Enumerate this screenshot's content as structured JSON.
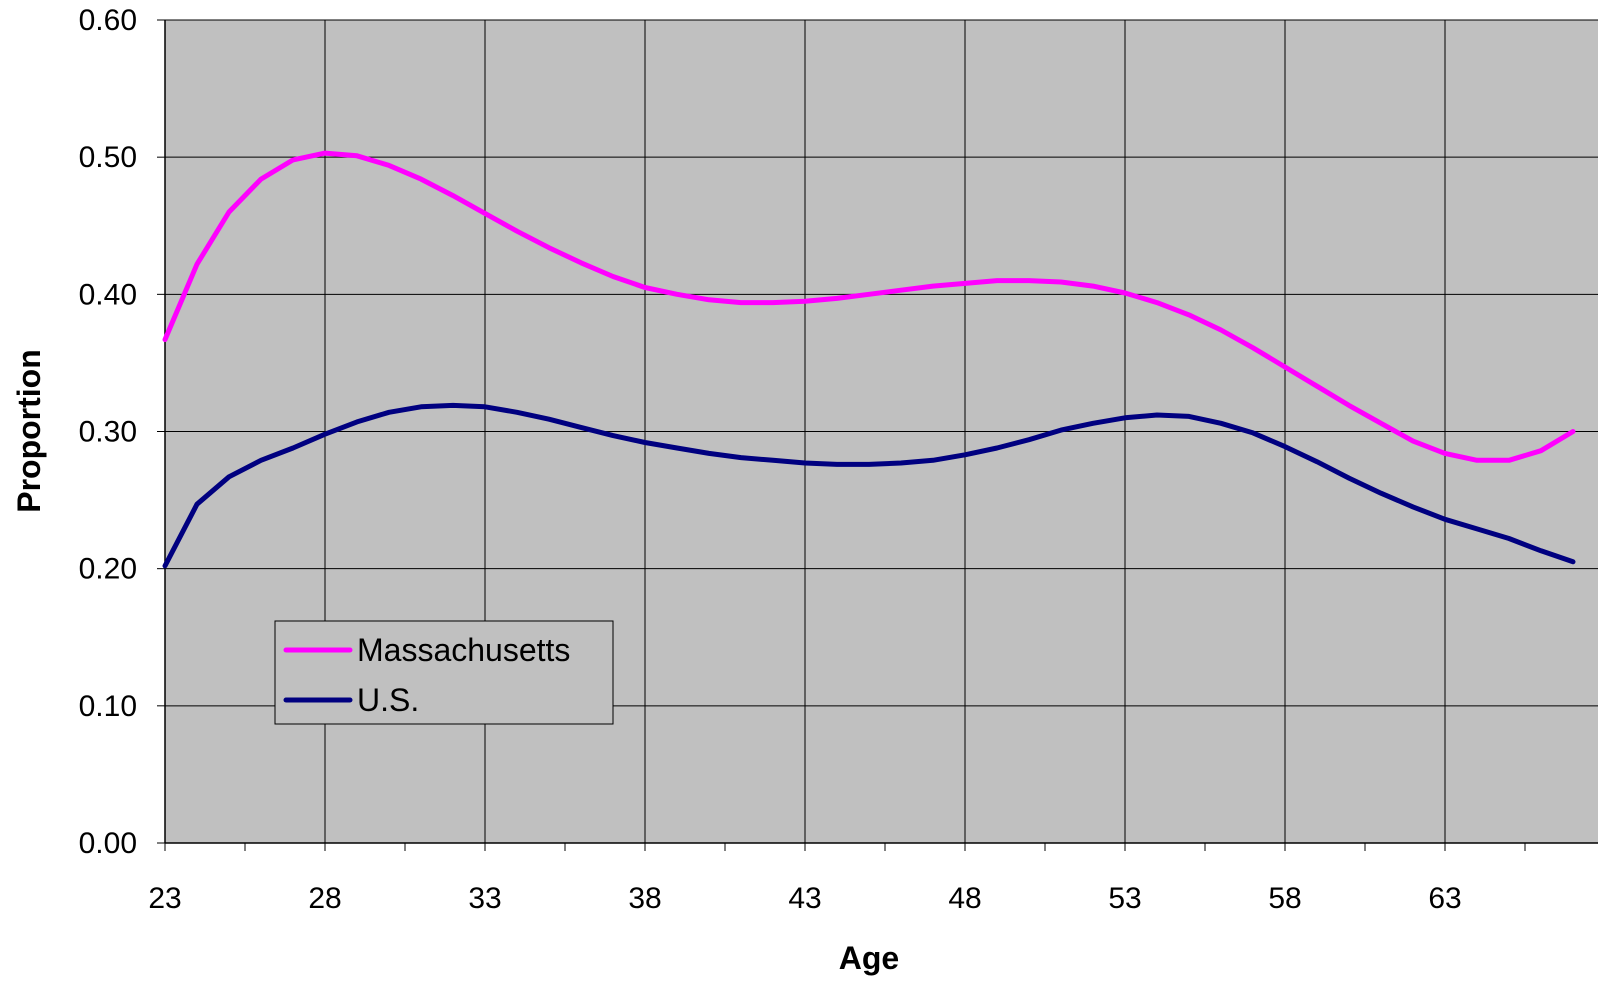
{
  "chart_data": {
    "type": "line",
    "title": "",
    "xlabel": "Age",
    "ylabel": "Proportion",
    "xlim": [
      23,
      67
    ],
    "ylim": [
      0,
      0.6
    ],
    "x_ticks": [
      "23",
      "28",
      "33",
      "38",
      "43",
      "48",
      "53",
      "58",
      "63"
    ],
    "y_ticks": [
      "0.00",
      "0.10",
      "0.20",
      "0.30",
      "0.40",
      "0.50",
      "0.60"
    ],
    "grid": true,
    "legend_position": "bottom-left",
    "plot_background": "#c0c0c0",
    "x": [
      23,
      24,
      25,
      26,
      27,
      28,
      29,
      30,
      31,
      32,
      33,
      34,
      35,
      36,
      37,
      38,
      39,
      40,
      41,
      42,
      43,
      44,
      45,
      46,
      47,
      48,
      49,
      50,
      51,
      52,
      53,
      54,
      55,
      56,
      57,
      58,
      59,
      60,
      61,
      62,
      63,
      64,
      65,
      66,
      67
    ],
    "series": [
      {
        "name": "Massachusetts",
        "color": "#ff00ff",
        "values": [
          0.367,
          0.422,
          0.46,
          0.484,
          0.498,
          0.503,
          0.501,
          0.494,
          0.484,
          0.472,
          0.459,
          0.446,
          0.434,
          0.423,
          0.413,
          0.405,
          0.4,
          0.396,
          0.394,
          0.394,
          0.395,
          0.397,
          0.4,
          0.403,
          0.406,
          0.408,
          0.41,
          0.41,
          0.409,
          0.406,
          0.401,
          0.394,
          0.385,
          0.374,
          0.361,
          0.347,
          0.333,
          0.319,
          0.306,
          0.293,
          0.284,
          0.279,
          0.279,
          0.286,
          0.3
        ]
      },
      {
        "name": "U.S.",
        "color": "#000080",
        "values": [
          0.202,
          0.247,
          0.267,
          0.279,
          0.288,
          0.298,
          0.307,
          0.314,
          0.318,
          0.319,
          0.318,
          0.314,
          0.309,
          0.303,
          0.297,
          0.292,
          0.288,
          0.284,
          0.281,
          0.279,
          0.277,
          0.276,
          0.276,
          0.277,
          0.279,
          0.283,
          0.288,
          0.294,
          0.301,
          0.306,
          0.31,
          0.312,
          0.311,
          0.306,
          0.299,
          0.289,
          0.278,
          0.266,
          0.255,
          0.245,
          0.236,
          0.229,
          0.222,
          0.213,
          0.205
        ]
      }
    ]
  }
}
